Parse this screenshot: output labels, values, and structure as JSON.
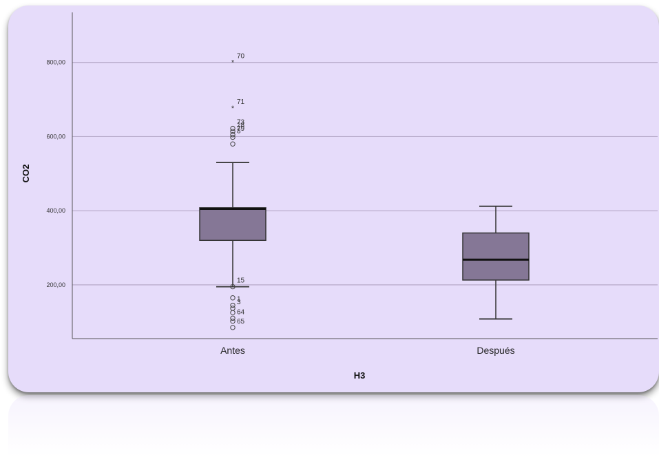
{
  "chart_data": {
    "type": "boxplot",
    "xlabel": "H3",
    "ylabel": "CO2",
    "y_ticks": [
      "200,00",
      "400,00",
      "600,00",
      "800,00"
    ],
    "y_tick_values": [
      200,
      400,
      600,
      800
    ],
    "ylim": [
      55,
      935
    ],
    "grid": true,
    "categories": [
      "Antes",
      "Después"
    ],
    "boxes": [
      {
        "category": "Antes",
        "whisker_low": 195,
        "q1": 320,
        "median": 405,
        "q3": 408,
        "whisker_high": 530,
        "outliers": [
          {
            "value": 800,
            "label": "70",
            "marker": "star"
          },
          {
            "value": 677,
            "label": "71",
            "marker": "star"
          },
          {
            "value": 622,
            "label": "73",
            "marker": "circle"
          },
          {
            "value": 614,
            "label": "28",
            "marker": "circle"
          },
          {
            "value": 605,
            "label": "79",
            "marker": "circle"
          },
          {
            "value": 598,
            "label": "8",
            "marker": "circle"
          },
          {
            "value": 580,
            "label": "",
            "marker": "circle"
          },
          {
            "value": 195,
            "label": "15",
            "marker": "circle"
          },
          {
            "value": 165,
            "label": "",
            "marker": "circle"
          },
          {
            "value": 145,
            "label": "1",
            "marker": "circle"
          },
          {
            "value": 137,
            "label": "3",
            "marker": "circle"
          },
          {
            "value": 125,
            "label": "",
            "marker": "circle"
          },
          {
            "value": 110,
            "label": "64",
            "marker": "circle"
          },
          {
            "value": 102,
            "label": "",
            "marker": "circle"
          },
          {
            "value": 85,
            "label": "65",
            "marker": "circle"
          }
        ]
      },
      {
        "category": "Después",
        "whisker_low": 108,
        "q1": 213,
        "median": 268,
        "q3": 340,
        "whisker_high": 412,
        "outliers": []
      }
    ],
    "colors": {
      "box_fill": "#857796",
      "box_edge": "#333333",
      "median": "#111111",
      "grid": "#b6a9c8",
      "background": "#e6dcfa"
    }
  }
}
